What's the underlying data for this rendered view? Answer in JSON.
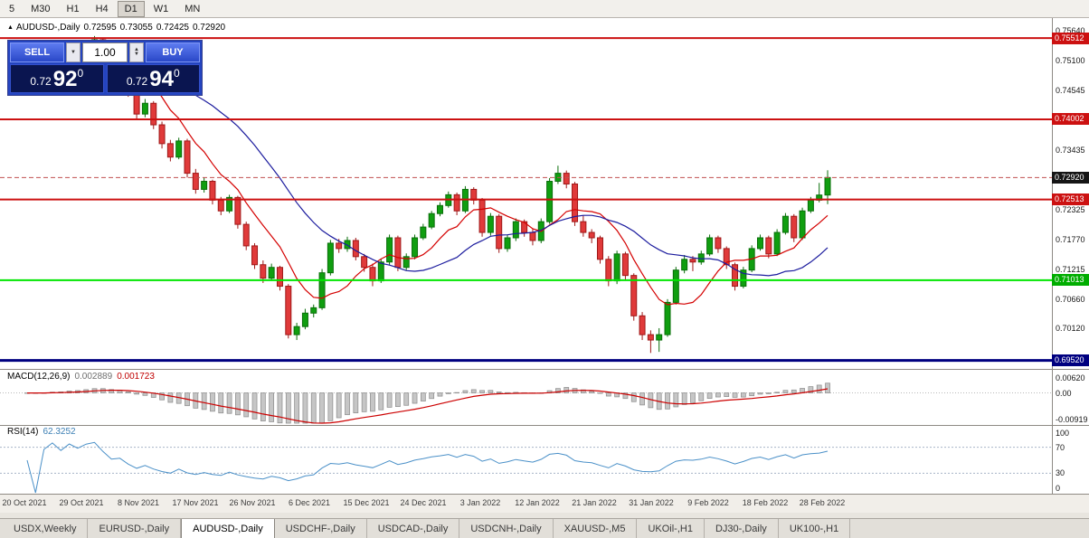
{
  "toolbar": {
    "timeframes": [
      {
        "label": "5"
      },
      {
        "label": "M30"
      },
      {
        "label": "H1"
      },
      {
        "label": "H4"
      },
      {
        "label": "D1"
      },
      {
        "label": "W1"
      },
      {
        "label": "MN"
      }
    ],
    "active": "D1"
  },
  "chart_header": {
    "shift_marker": "▲",
    "symbol": "AUDUSD-,Daily",
    "open": "0.72595",
    "high": "0.73055",
    "low": "0.72425",
    "close": "0.72920"
  },
  "trade_panel": {
    "sell_label": "SELL",
    "buy_label": "BUY",
    "volume": "1.00",
    "sell_price": {
      "prefix": "0.72",
      "big": "92",
      "sup": "0"
    },
    "buy_price": {
      "prefix": "0.72",
      "big": "94",
      "sup": "0"
    }
  },
  "price_axis": {
    "labels": [
      {
        "text": "0.75640",
        "price": 0.7564
      },
      {
        "text": "0.75100",
        "price": 0.751
      },
      {
        "text": "0.74545",
        "price": 0.74545
      },
      {
        "text": "0.73990",
        "price": 0.7399
      },
      {
        "text": "0.73435",
        "price": 0.73435
      },
      {
        "text": "0.72325",
        "price": 0.72325
      },
      {
        "text": "0.71770",
        "price": 0.7177
      },
      {
        "text": "0.71215",
        "price": 0.71215
      },
      {
        "text": "0.70660",
        "price": 0.7066
      },
      {
        "text": "0.70120",
        "price": 0.7012
      }
    ],
    "badges": [
      {
        "text": "0.75512",
        "price": 0.75512,
        "color": "#cc1111"
      },
      {
        "text": "0.74002",
        "price": 0.74002,
        "color": "#cc1111"
      },
      {
        "text": "0.72920",
        "price": 0.7292,
        "color": "#151515"
      },
      {
        "text": "0.72513",
        "price": 0.72513,
        "color": "#cc1111"
      },
      {
        "text": "0.71013",
        "price": 0.71013,
        "color": "#00ad00"
      },
      {
        "text": "0.69520",
        "price": 0.6952,
        "color": "#000080"
      }
    ]
  },
  "macd_panel": {
    "name": "MACD(12,26,9)",
    "value_main": "0.002889",
    "value_signal": "0.001723",
    "axis_labels": [
      {
        "text": "0.00620",
        "value": 0.0062
      },
      {
        "text": "0.00",
        "value": 0
      },
      {
        "text": "-0.00919",
        "value": -0.00919
      }
    ]
  },
  "rsi_panel": {
    "name": "RSI(14)",
    "value": "62.3252",
    "axis_labels": [
      {
        "text": "100",
        "value": 100
      },
      {
        "text": "70",
        "value": 70
      },
      {
        "text": "30",
        "value": 30
      },
      {
        "text": "0",
        "value": 0
      }
    ]
  },
  "tabs": {
    "items": [
      {
        "label": "USDX,Weekly",
        "active": false
      },
      {
        "label": "EURUSD-,Daily",
        "active": false
      },
      {
        "label": "AUDUSD-,Daily",
        "active": true
      },
      {
        "label": "USDCHF-,Daily",
        "active": false
      },
      {
        "label": "USDCAD-,Daily",
        "active": false
      },
      {
        "label": "USDCNH-,Daily",
        "active": false
      },
      {
        "label": "XAUUSD-,M5",
        "active": false
      },
      {
        "label": "UKOil-,H1",
        "active": false
      },
      {
        "label": "DJ30-,Daily",
        "active": false
      },
      {
        "label": "UK100-,H1",
        "active": false
      }
    ]
  },
  "chart_data": {
    "type": "candlestick",
    "title": "AUDUSD-,Daily",
    "ylim": [
      0.6938,
      0.7585
    ],
    "x_labels": [
      "20 Oct 2021",
      "29 Oct 2021",
      "8 Nov 2021",
      "17 Nov 2021",
      "26 Nov 2021",
      "6 Dec 2021",
      "15 Dec 2021",
      "24 Dec 2021",
      "3 Jan 2022",
      "12 Jan 2022",
      "21 Jan 2022",
      "31 Jan 2022",
      "9 Feb 2022",
      "18 Feb 2022",
      "28 Feb 2022"
    ],
    "up_color": "#109e10",
    "up_border": "#0a6e0a",
    "down_color": "#e03a3a",
    "down_border": "#9e1818",
    "ma_fast": {
      "period": 8,
      "color": "#d40000"
    },
    "ma_slow": {
      "period": 21,
      "color": "#1c1c9e"
    },
    "hlines": [
      {
        "price": 0.75512,
        "color": "#cc1111",
        "width": 2,
        "style": "solid"
      },
      {
        "price": 0.74002,
        "color": "#cc1111",
        "width": 2,
        "style": "solid"
      },
      {
        "price": 0.72513,
        "color": "#cc1111",
        "width": 2,
        "style": "solid"
      },
      {
        "price": 0.7292,
        "color": "#c05050",
        "width": 1,
        "style": "dashed"
      },
      {
        "price": 0.71013,
        "color": "#00e600",
        "width": 2,
        "style": "solid"
      },
      {
        "price": 0.6952,
        "color": "#000080",
        "width": 3,
        "style": "solid"
      }
    ],
    "macd": {
      "fast": 12,
      "slow": 26,
      "signal_period": 9,
      "scale_max": 0.0062,
      "scale_min": -0.00919,
      "hist_fill": "#c6c6c6",
      "hist_border": "#8f8f8f",
      "signal_color": "#cc0000"
    },
    "rsi": {
      "period": 14,
      "color": "#4a90c8",
      "levels": [
        70,
        30
      ],
      "scale": [
        0,
        100
      ]
    },
    "candles": [
      [
        0.749,
        0.7498,
        0.747,
        0.7478
      ],
      [
        0.7478,
        0.7484,
        0.7458,
        0.7466
      ],
      [
        0.7466,
        0.7496,
        0.7462,
        0.749
      ],
      [
        0.749,
        0.7512,
        0.7486,
        0.7505
      ],
      [
        0.7505,
        0.751,
        0.7488,
        0.7496
      ],
      [
        0.7496,
        0.7526,
        0.7492,
        0.752
      ],
      [
        0.752,
        0.7528,
        0.7504,
        0.7512
      ],
      [
        0.7512,
        0.7541,
        0.7508,
        0.7535
      ],
      [
        0.7535,
        0.7555,
        0.7528,
        0.7548
      ],
      [
        0.7548,
        0.7552,
        0.7512,
        0.752
      ],
      [
        0.752,
        0.7526,
        0.7478,
        0.7485
      ],
      [
        0.7485,
        0.7498,
        0.7476,
        0.749
      ],
      [
        0.749,
        0.7494,
        0.7442,
        0.745
      ],
      [
        0.745,
        0.7456,
        0.74,
        0.741
      ],
      [
        0.741,
        0.7438,
        0.7404,
        0.743
      ],
      [
        0.743,
        0.7434,
        0.7382,
        0.739
      ],
      [
        0.739,
        0.7396,
        0.7346,
        0.7355
      ],
      [
        0.7355,
        0.7362,
        0.7322,
        0.733
      ],
      [
        0.733,
        0.7366,
        0.7326,
        0.736
      ],
      [
        0.736,
        0.7364,
        0.7292,
        0.73
      ],
      [
        0.73,
        0.7308,
        0.7262,
        0.727
      ],
      [
        0.727,
        0.7292,
        0.7264,
        0.7285
      ],
      [
        0.7285,
        0.7288,
        0.7242,
        0.725
      ],
      [
        0.725,
        0.7256,
        0.7222,
        0.723
      ],
      [
        0.723,
        0.726,
        0.7226,
        0.7255
      ],
      [
        0.7255,
        0.7258,
        0.7197,
        0.7205
      ],
      [
        0.7205,
        0.721,
        0.7157,
        0.7165
      ],
      [
        0.7165,
        0.717,
        0.7122,
        0.713
      ],
      [
        0.713,
        0.7138,
        0.7096,
        0.7105
      ],
      [
        0.7105,
        0.7132,
        0.71,
        0.7125
      ],
      [
        0.7125,
        0.7128,
        0.7082,
        0.709
      ],
      [
        0.709,
        0.7094,
        0.6993,
        0.7
      ],
      [
        0.7,
        0.7022,
        0.699,
        0.7015
      ],
      [
        0.7015,
        0.7048,
        0.701,
        0.704
      ],
      [
        0.704,
        0.7056,
        0.7032,
        0.705
      ],
      [
        0.705,
        0.7122,
        0.7046,
        0.7115
      ],
      [
        0.7115,
        0.7176,
        0.711,
        0.717
      ],
      [
        0.717,
        0.7178,
        0.7152,
        0.716
      ],
      [
        0.716,
        0.7182,
        0.7154,
        0.7175
      ],
      [
        0.7175,
        0.718,
        0.7138,
        0.7145
      ],
      [
        0.7145,
        0.715,
        0.7117,
        0.7125
      ],
      [
        0.7125,
        0.7132,
        0.709,
        0.71
      ],
      [
        0.71,
        0.7141,
        0.7096,
        0.7135
      ],
      [
        0.7135,
        0.7186,
        0.713,
        0.718
      ],
      [
        0.718,
        0.7184,
        0.7118,
        0.7125
      ],
      [
        0.7125,
        0.7151,
        0.712,
        0.7145
      ],
      [
        0.7145,
        0.7186,
        0.714,
        0.718
      ],
      [
        0.718,
        0.7206,
        0.7176,
        0.72
      ],
      [
        0.72,
        0.723,
        0.7196,
        0.7225
      ],
      [
        0.7225,
        0.7246,
        0.722,
        0.724
      ],
      [
        0.724,
        0.7266,
        0.7236,
        0.726
      ],
      [
        0.726,
        0.7264,
        0.7222,
        0.723
      ],
      [
        0.723,
        0.7276,
        0.7226,
        0.727
      ],
      [
        0.727,
        0.7274,
        0.7242,
        0.725
      ],
      [
        0.725,
        0.7254,
        0.7182,
        0.719
      ],
      [
        0.719,
        0.7226,
        0.7184,
        0.722
      ],
      [
        0.722,
        0.7224,
        0.7152,
        0.716
      ],
      [
        0.716,
        0.7186,
        0.7154,
        0.718
      ],
      [
        0.718,
        0.7216,
        0.7174,
        0.721
      ],
      [
        0.721,
        0.7214,
        0.7182,
        0.719
      ],
      [
        0.719,
        0.7196,
        0.7166,
        0.7175
      ],
      [
        0.7175,
        0.7216,
        0.717,
        0.721
      ],
      [
        0.721,
        0.7291,
        0.7206,
        0.7285
      ],
      [
        0.7285,
        0.7314,
        0.728,
        0.73
      ],
      [
        0.73,
        0.7305,
        0.7272,
        0.728
      ],
      [
        0.728,
        0.7284,
        0.7202,
        0.721
      ],
      [
        0.721,
        0.7222,
        0.7182,
        0.719
      ],
      [
        0.719,
        0.7196,
        0.717,
        0.718
      ],
      [
        0.718,
        0.7184,
        0.7132,
        0.714
      ],
      [
        0.714,
        0.7146,
        0.709,
        0.71
      ],
      [
        0.71,
        0.7156,
        0.7094,
        0.715
      ],
      [
        0.715,
        0.7154,
        0.71,
        0.711
      ],
      [
        0.711,
        0.7114,
        0.7026,
        0.7035
      ],
      [
        0.7035,
        0.7042,
        0.699,
        0.7
      ],
      [
        0.7,
        0.7008,
        0.6966,
        0.699
      ],
      [
        0.699,
        0.7012,
        0.6968,
        0.7
      ],
      [
        0.7,
        0.7066,
        0.6996,
        0.706
      ],
      [
        0.706,
        0.7126,
        0.7056,
        0.712
      ],
      [
        0.712,
        0.7148,
        0.7114,
        0.714
      ],
      [
        0.714,
        0.7146,
        0.7118,
        0.7135
      ],
      [
        0.7135,
        0.7156,
        0.713,
        0.715
      ],
      [
        0.715,
        0.7186,
        0.7146,
        0.718
      ],
      [
        0.718,
        0.7184,
        0.7152,
        0.716
      ],
      [
        0.716,
        0.7164,
        0.7122,
        0.713
      ],
      [
        0.713,
        0.7134,
        0.7082,
        0.709
      ],
      [
        0.709,
        0.7126,
        0.7086,
        0.712
      ],
      [
        0.712,
        0.7166,
        0.7116,
        0.716
      ],
      [
        0.716,
        0.7186,
        0.7156,
        0.718
      ],
      [
        0.718,
        0.7184,
        0.7142,
        0.715
      ],
      [
        0.715,
        0.7196,
        0.7146,
        0.719
      ],
      [
        0.719,
        0.7226,
        0.7186,
        0.722
      ],
      [
        0.722,
        0.7224,
        0.7172,
        0.718
      ],
      [
        0.718,
        0.7236,
        0.7176,
        0.723
      ],
      [
        0.723,
        0.7256,
        0.7226,
        0.725
      ],
      [
        0.725,
        0.7282,
        0.7246,
        0.72595
      ],
      [
        0.72595,
        0.73055,
        0.72425,
        0.7292
      ]
    ]
  }
}
